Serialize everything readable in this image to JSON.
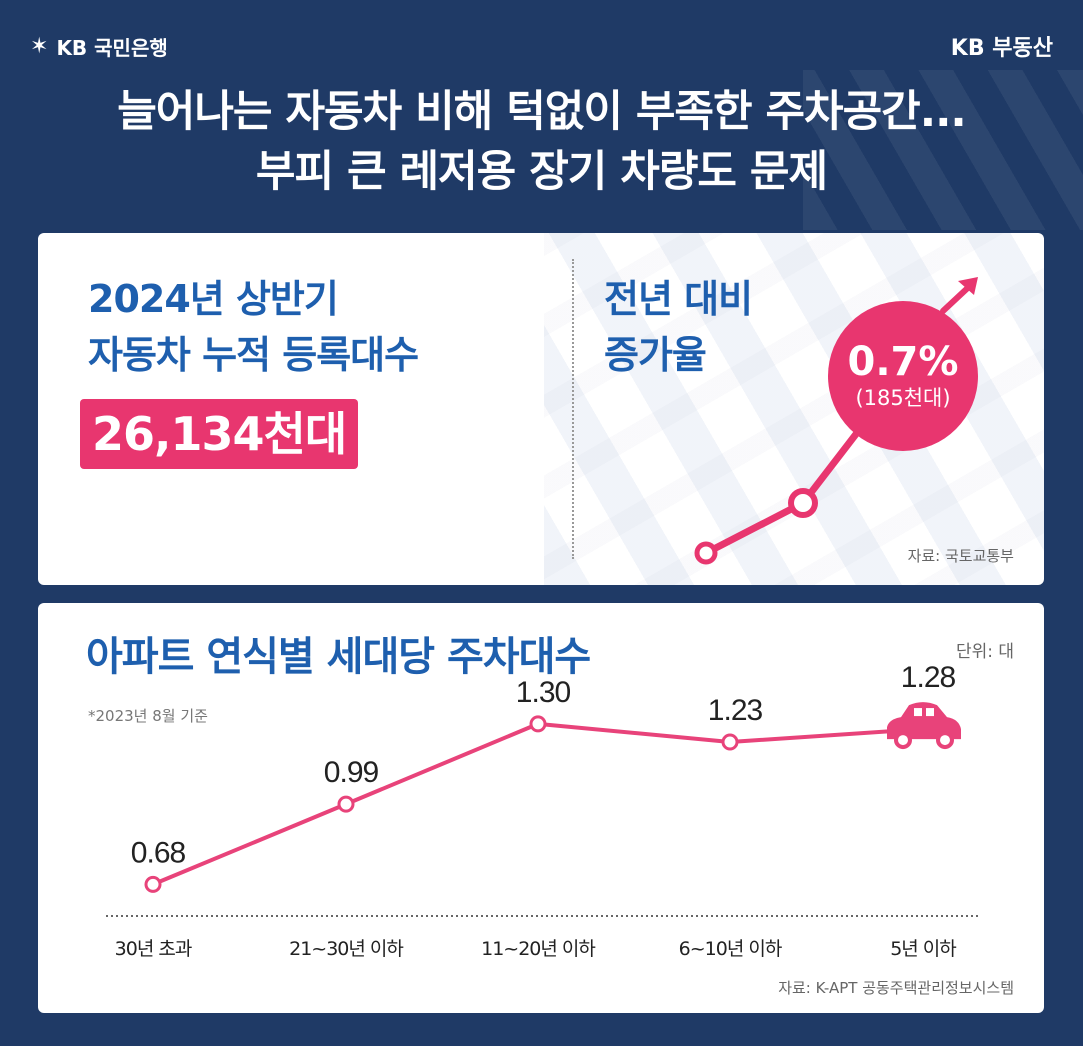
{
  "header": {
    "brand_left": "KB 국민은행",
    "brand_right": "KB 부동산",
    "headline_line1": "늘어나는 자동차 비해 턱없이 부족한 주차공간...",
    "headline_line2": "부피 큰 레저용 장기 차량도 문제"
  },
  "registration": {
    "title_line1": "2024년 상반기",
    "title_line2": "자동차 누적 등록대수",
    "value": "26,134천대"
  },
  "growth": {
    "title_line1": "전년 대비",
    "title_line2": "증가율",
    "rate": "0.7%",
    "amount": "(185천대)",
    "source": "자료: 국토교통부"
  },
  "chart_data": {
    "type": "line",
    "title": "아파트 연식별 세대당 주차대수",
    "unit": "단위: 대",
    "note": "*2023년 8월 기준",
    "categories": [
      "30년 초과",
      "21~30년 이하",
      "11~20년 이하",
      "6~10년 이하",
      "5년 이하"
    ],
    "values": [
      0.68,
      0.99,
      1.3,
      1.23,
      1.28
    ],
    "value_labels": [
      "0.68",
      "0.99",
      "1.30",
      "1.23",
      "1.28"
    ],
    "ylim": [
      0.5,
      1.4
    ],
    "source": "자료: K-APT 공동주택관리정보시스템",
    "colors": {
      "line": "#e8437a",
      "title": "#1e5fae",
      "accent": "#e8366f"
    }
  }
}
